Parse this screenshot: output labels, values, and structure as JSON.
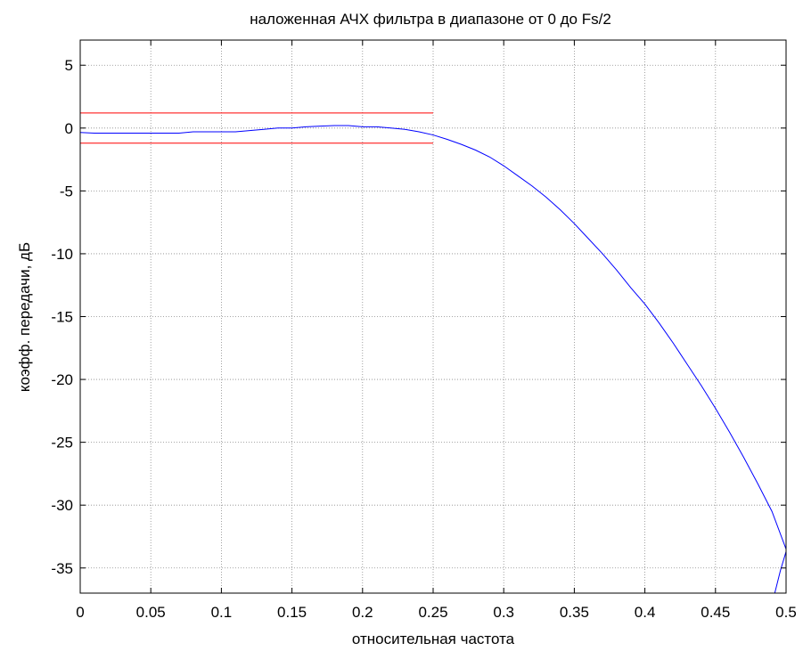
{
  "chart_data": {
    "type": "line",
    "title": "наложенная АЧХ фильтра в диапазоне от 0 до Fs/2",
    "xlabel": "относительная частота",
    "ylabel": "коэфф. передачи, дБ",
    "xlim": [
      0,
      0.5
    ],
    "ylim": [
      -37,
      7
    ],
    "grid": true,
    "x_ticks": [
      0,
      0.05,
      0.1,
      0.15,
      0.2,
      0.25,
      0.3,
      0.35,
      0.4,
      0.45,
      0.5
    ],
    "x_tick_labels": [
      "0",
      "0.05",
      "0.1",
      "0.15",
      "0.2",
      "0.25",
      "0.3",
      "0.35",
      "0.4",
      "0.45",
      "0.5"
    ],
    "y_ticks": [
      5,
      0,
      -5,
      -10,
      -15,
      -20,
      -25,
      -30,
      -35
    ],
    "y_tick_labels": [
      "5",
      "0",
      "-5",
      "-10",
      "-15",
      "-20",
      "-25",
      "-30",
      "-35"
    ],
    "series": [
      {
        "color": "#0000ff",
        "x": [
          0,
          0.01,
          0.02,
          0.03,
          0.04,
          0.05,
          0.06,
          0.07,
          0.08,
          0.09,
          0.1,
          0.11,
          0.12,
          0.13,
          0.14,
          0.15,
          0.16,
          0.17,
          0.18,
          0.19,
          0.2,
          0.21,
          0.22,
          0.23,
          0.24,
          0.25,
          0.26,
          0.27,
          0.28,
          0.29,
          0.3,
          0.31,
          0.32,
          0.33,
          0.34,
          0.35,
          0.36,
          0.37,
          0.38,
          0.39,
          0.4,
          0.41,
          0.42,
          0.43,
          0.44,
          0.45,
          0.46,
          0.47,
          0.48,
          0.49,
          0.5
        ],
        "y": [
          -0.35,
          -0.4,
          -0.4,
          -0.4,
          -0.4,
          -0.4,
          -0.4,
          -0.4,
          -0.3,
          -0.3,
          -0.3,
          -0.3,
          -0.2,
          -0.1,
          0,
          0,
          0.1,
          0.15,
          0.2,
          0.2,
          0.1,
          0.1,
          0,
          -0.1,
          -0.3,
          -0.55,
          -0.9,
          -1.3,
          -1.75,
          -2.3,
          -3.0,
          -3.8,
          -4.6,
          -5.5,
          -6.5,
          -7.6,
          -8.8,
          -10.0,
          -11.3,
          -12.7,
          -14.0,
          -15.5,
          -17.1,
          -18.8,
          -20.5,
          -22.3,
          -24.2,
          -26.2,
          -28.3,
          -30.5,
          -33.5
        ]
      },
      {
        "color": "#0000ff",
        "x": [
          0.492,
          0.496,
          0.5
        ],
        "y": [
          -37,
          -35.2,
          -33.7
        ]
      },
      {
        "color": "#ff0000",
        "x": [
          0,
          0.25
        ],
        "y": [
          1.2,
          1.2
        ]
      },
      {
        "color": "#ff0000",
        "x": [
          0,
          0.25
        ],
        "y": [
          -1.2,
          -1.2
        ]
      }
    ]
  }
}
